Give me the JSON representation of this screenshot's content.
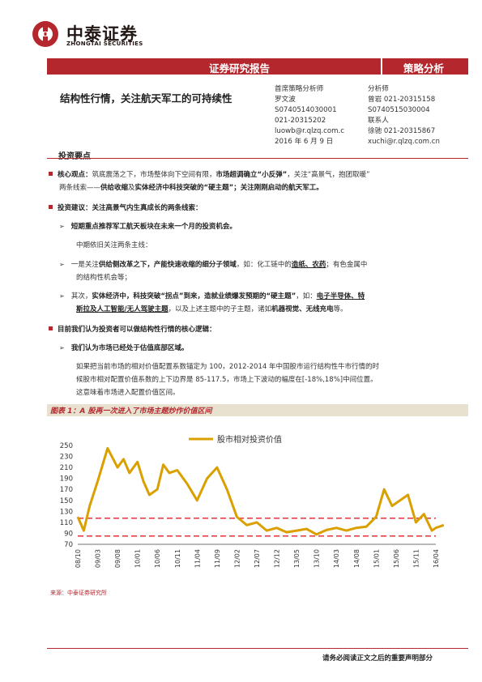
{
  "header": {
    "company_cn": "中泰证券",
    "company_en": "ZHONGTAI SECURITIES",
    "banner_left": "证券研究报告",
    "banner_right": "策略分析",
    "brand_color": "#b3272d"
  },
  "title": "结构性行情，关注航天军工的可持续性",
  "analysts": {
    "left": [
      "首席策略分析师",
      "罗文波",
      "S0740514030001",
      "021-20315202",
      "luowb@r.qlzq.com.c",
      "2016 年 6 月 9 日"
    ],
    "right": [
      "分析师",
      "曾岩 021-20315158",
      "S0740515030004",
      "联系人",
      "徐驰 021-20315867",
      "xuchi@r.qlzq.com.cn"
    ]
  },
  "section_title": "投资要点",
  "points": {
    "core_label": "核心观点：",
    "core_text1": "筑底震荡之下，市场整体向下空间有限，",
    "core_bold1": "市场超调确立“小反弹”",
    "core_text2": "，关注“高景气，抱团取暖”",
    "core_line2_a": "两条线索——",
    "core_bold2": "供给收缩",
    "core_line2_b": "及",
    "core_bold3": "实体经济中科技突破的“硬主题”",
    "core_bold4": "；关注刚刚启动的航天军工。",
    "advice_label": "投资建议：关注高景气内生真成长的两条线索：",
    "short_term": "短期重点推荐军工航天板块在未来一个月的投资机会。",
    "mid_term": "中期依旧关注两条主线：",
    "line1_a": "一是关注",
    "line1_b": "供给侧改革之下，产能快速收缩的细分子领域",
    "line1_c": "，如：化工链中的",
    "line1_d": "造纸、农药",
    "line1_e": "；有色金属中",
    "line1_f": "的结构性机会等；",
    "line2_a": "其次，",
    "line2_b": "实体经济中，科技突破“拐点”到来，造就业绩爆发预期的“硬主题”",
    "line2_c": "，如：",
    "line2_d": "电子半导体、特",
    "line2_e": "斯拉及人工智能/无人驾驶主题",
    "line2_f": "，以及上述主题中的子主题，诸如",
    "line2_g": "机器视觉、无线充电",
    "line2_h": "等。",
    "logic_label": "目前我们认为投资者可以做结构性行情的核心逻辑：",
    "bottom_area": "我们认为市场已经处于估值底部区域。",
    "para1": "如果把当前市场的相对价值配置系数锚定为 100，2012-2014 年中国股市运行结构性牛市行情的时",
    "para2": "候股市相对配置价值系数的上下边界是 85-117.5，市场上下波动的幅度在[-18%,18%]中间位置。",
    "para3": "这意味着市场进入配置价值区间。"
  },
  "figure": {
    "caption": "图表 1：A 股再一次进入了市场主题炒作价值区间",
    "source": "来源：中泰证券研究所"
  },
  "chart_data": {
    "type": "line",
    "title": "",
    "series": [
      {
        "name": "股市相对投资价值",
        "color": "#d9a000"
      }
    ],
    "x_labels": [
      "08/10",
      "09/03",
      "09/08",
      "10/01",
      "10/06",
      "10/11",
      "11/04",
      "11/09",
      "12/02",
      "12/07",
      "12/12",
      "13/05",
      "13/10",
      "14/03",
      "14/08",
      "15/01",
      "15/06",
      "15/11",
      "16/04"
    ],
    "y_ticks": [
      70,
      90,
      110,
      130,
      150,
      170,
      190,
      210,
      230,
      250
    ],
    "ylim": [
      70,
      250
    ],
    "reference_lines": [
      117.5,
      85
    ],
    "reference_color": "#e2222a",
    "x": [
      0,
      0.3,
      0.6,
      1,
      1.5,
      2,
      2.3,
      2.6,
      3,
      3.3,
      3.6,
      4,
      4.3,
      4.6,
      5,
      5.5,
      6,
      6.5,
      7,
      7.5,
      8,
      8.5,
      9,
      9.5,
      10,
      10.5,
      11,
      11.5,
      12,
      12.5,
      13,
      13.5,
      14,
      14.5,
      15,
      15.4,
      15.8,
      16.2,
      16.6,
      17,
      17.4,
      17.8,
      18,
      18.4
    ],
    "values": [
      120,
      95,
      140,
      185,
      245,
      210,
      225,
      200,
      220,
      185,
      160,
      170,
      215,
      200,
      205,
      180,
      150,
      190,
      210,
      170,
      120,
      105,
      110,
      95,
      100,
      92,
      95,
      98,
      88,
      96,
      100,
      95,
      100,
      102,
      120,
      170,
      140,
      150,
      160,
      110,
      125,
      95,
      100,
      105
    ]
  },
  "footer": {
    "disclaimer": "请务必阅读正文之后的重要声明部分"
  }
}
